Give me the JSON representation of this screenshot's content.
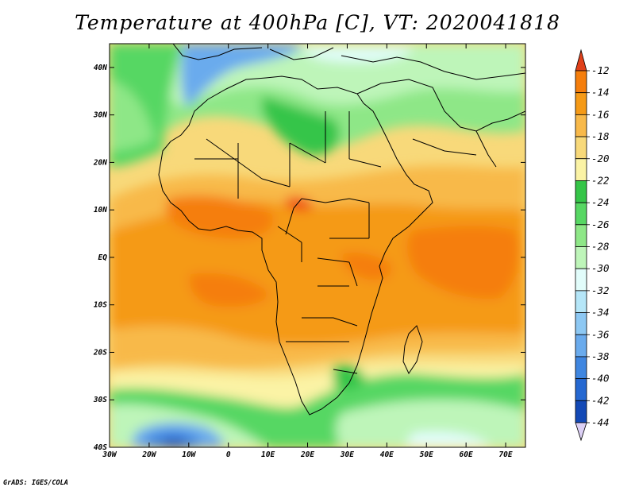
{
  "title": "Temperature at 400hPa [C], VT: 2020041818",
  "credit": "GrADS: IGES/COLA",
  "map": {
    "lon_range": [
      -30,
      75
    ],
    "lat_range": [
      -40,
      45
    ],
    "lon_ticks": [
      {
        "value": -30,
        "label": "30W"
      },
      {
        "value": -20,
        "label": "20W"
      },
      {
        "value": -10,
        "label": "10W"
      },
      {
        "value": 0,
        "label": "0"
      },
      {
        "value": 10,
        "label": "10E"
      },
      {
        "value": 20,
        "label": "20E"
      },
      {
        "value": 30,
        "label": "30E"
      },
      {
        "value": 40,
        "label": "40E"
      },
      {
        "value": 50,
        "label": "50E"
      },
      {
        "value": 60,
        "label": "60E"
      },
      {
        "value": 70,
        "label": "70E"
      }
    ],
    "lat_ticks": [
      {
        "value": 40,
        "label": "40N"
      },
      {
        "value": 30,
        "label": "30N"
      },
      {
        "value": 20,
        "label": "20N"
      },
      {
        "value": 10,
        "label": "10N"
      },
      {
        "value": 0,
        "label": "EQ"
      },
      {
        "value": -10,
        "label": "10S"
      },
      {
        "value": -20,
        "label": "20S"
      },
      {
        "value": -30,
        "label": "30S"
      },
      {
        "value": -40,
        "label": "40S"
      }
    ]
  },
  "colorbar": {
    "levels": [
      -12,
      -14,
      -16,
      -18,
      -20,
      -22,
      -24,
      -26,
      -28,
      -30,
      -32,
      -34,
      -36,
      -38,
      -40,
      -42,
      -44
    ],
    "level_labels": [
      "-12",
      "-14",
      "-16",
      "-18",
      "-20",
      "-22",
      "-24",
      "-26",
      "-28",
      "-30",
      "-32",
      "-34",
      "-36",
      "-38",
      "-40",
      "-42",
      "-44"
    ],
    "colors": [
      "#f04818",
      "#f57e0c",
      "#f59a17",
      "#f8b94a",
      "#f8d97a",
      "#fbf3a5",
      "#35c548",
      "#57d763",
      "#8ee787",
      "#bef5b9",
      "#e2fdfb",
      "#b5e6f8",
      "#8dc8f3",
      "#6aabed",
      "#3f86e0",
      "#2568d1",
      "#1349b6",
      "#0f1f7a"
    ],
    "top_color": "#e0401a",
    "bottom_color": "#dcd0f5"
  }
}
